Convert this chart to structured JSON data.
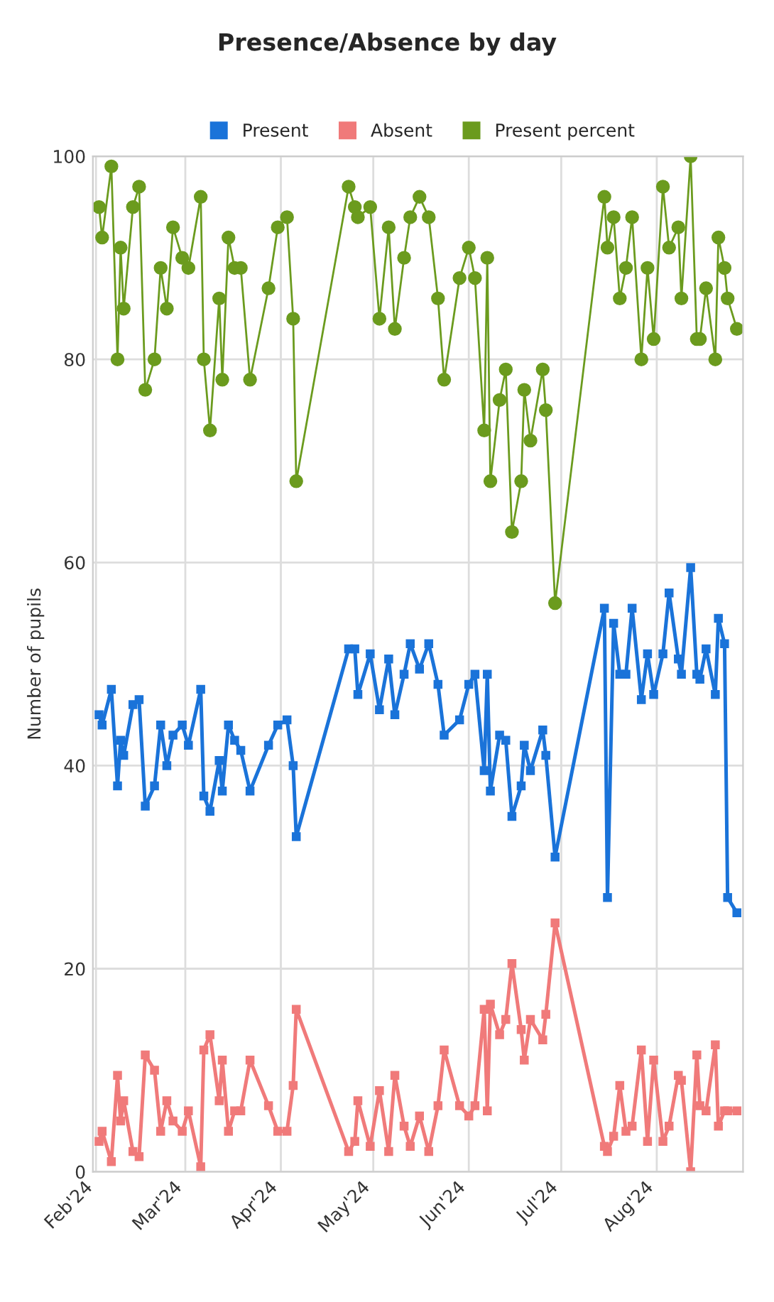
{
  "chart_data": {
    "type": "line",
    "title": "Presence/Absence by day",
    "ylabel": "Number of pupils",
    "x": [
      "2024-02-02",
      "2024-02-03",
      "2024-02-06",
      "2024-02-08",
      "2024-02-09",
      "2024-02-10",
      "2024-02-13",
      "2024-02-15",
      "2024-02-17",
      "2024-02-20",
      "2024-02-22",
      "2024-02-24",
      "2024-02-26",
      "2024-02-29",
      "2024-03-02",
      "2024-03-06",
      "2024-03-07",
      "2024-03-09",
      "2024-03-12",
      "2024-03-13",
      "2024-03-15",
      "2024-03-17",
      "2024-03-19",
      "2024-03-22",
      "2024-03-28",
      "2024-03-31",
      "2024-04-03",
      "2024-04-05",
      "2024-04-06",
      "2024-04-23",
      "2024-04-25",
      "2024-04-26",
      "2024-04-30",
      "2024-05-03",
      "2024-05-06",
      "2024-05-08",
      "2024-05-11",
      "2024-05-13",
      "2024-05-16",
      "2024-05-19",
      "2024-05-22",
      "2024-05-24",
      "2024-05-29",
      "2024-06-01",
      "2024-06-03",
      "2024-06-06",
      "2024-06-07",
      "2024-06-08",
      "2024-06-11",
      "2024-06-13",
      "2024-06-15",
      "2024-06-18",
      "2024-06-19",
      "2024-06-21",
      "2024-06-25",
      "2024-06-26",
      "2024-06-29",
      "2024-07-15",
      "2024-07-16",
      "2024-07-18",
      "2024-07-20",
      "2024-07-22",
      "2024-07-24",
      "2024-07-27",
      "2024-07-29",
      "2024-07-31",
      "2024-08-03",
      "2024-08-05",
      "2024-08-08",
      "2024-08-09",
      "2024-08-12",
      "2024-08-14",
      "2024-08-15",
      "2024-08-17",
      "2024-08-20",
      "2024-08-21",
      "2024-08-23",
      "2024-08-24",
      "2024-08-27"
    ],
    "series": [
      {
        "name": "Present",
        "color": "#1a73d9",
        "marker": "square",
        "values": [
          45,
          44,
          47.5,
          38,
          42.5,
          41,
          46,
          46.5,
          36,
          38,
          44,
          40,
          43,
          44,
          42,
          47.5,
          37,
          35.5,
          40.5,
          37.5,
          44,
          42.5,
          41.5,
          37.5,
          42,
          44,
          44.5,
          40,
          33,
          51.5,
          51.5,
          47,
          51,
          45.5,
          50.5,
          45,
          49,
          52,
          49.5,
          52,
          48,
          43,
          44.5,
          48,
          49,
          39.5,
          49,
          37.5,
          43,
          42.5,
          35,
          38,
          42,
          39.5,
          43.5,
          41,
          31,
          55.5,
          27,
          54,
          49,
          49,
          55.5,
          46.5,
          51,
          47,
          51,
          57,
          50.5,
          49,
          59.5,
          49,
          48.5,
          51.5,
          47,
          54.5,
          52,
          27,
          25.5
        ]
      },
      {
        "name": "Absent",
        "color": "#f07a7a",
        "marker": "square",
        "values": [
          3,
          4,
          1,
          9.5,
          5,
          7,
          2,
          1.5,
          11.5,
          10,
          4,
          7,
          5,
          4,
          6,
          0.5,
          12,
          13.5,
          7,
          11,
          4,
          6,
          6,
          11,
          6.5,
          4,
          4,
          8.5,
          16,
          2,
          3,
          7,
          2.5,
          8,
          2,
          9.5,
          4.5,
          2.5,
          5.5,
          2,
          6.5,
          12,
          6.5,
          5.5,
          6.5,
          16,
          6,
          16.5,
          13.5,
          15,
          20.5,
          14,
          11,
          15,
          13,
          15.5,
          24.5,
          2.5,
          2,
          3.5,
          8.5,
          4,
          4.5,
          12,
          3,
          11,
          3,
          4.5,
          9.5,
          9,
          0,
          11.5,
          6.5,
          6,
          12.5,
          4.5,
          6,
          6,
          6
        ]
      },
      {
        "name": "Present percent",
        "color": "#6b9b1e",
        "marker": "circle",
        "values": [
          95,
          92,
          99,
          80,
          91,
          85,
          95,
          97,
          77,
          80,
          89,
          85,
          93,
          90,
          89,
          96,
          80,
          73,
          86,
          78,
          92,
          89,
          89,
          78,
          87,
          93,
          94,
          84,
          68,
          97,
          95,
          94,
          95,
          84,
          93,
          83,
          90,
          94,
          96,
          94,
          86,
          78,
          88,
          91,
          88,
          73,
          90,
          68,
          76,
          79,
          63,
          68,
          77,
          72,
          79,
          75,
          56,
          96,
          91,
          94,
          86,
          89,
          94,
          80,
          89,
          82,
          97,
          91,
          93,
          86,
          100,
          82,
          82,
          87,
          80,
          92,
          89,
          86,
          83
        ]
      }
    ],
    "xlim": [
      "2024-01-31",
      "2024-08-29"
    ],
    "xticks": [
      {
        "value": "2024-02-01",
        "label": "Feb'24"
      },
      {
        "value": "2024-03-01",
        "label": "Mar'24"
      },
      {
        "value": "2024-04-01",
        "label": "Apr'24"
      },
      {
        "value": "2024-05-01",
        "label": "May'24"
      },
      {
        "value": "2024-06-01",
        "label": "Jun'24"
      },
      {
        "value": "2024-07-01",
        "label": "Jul'24"
      },
      {
        "value": "2024-08-01",
        "label": "Aug'24"
      }
    ],
    "ylim": [
      0,
      100
    ],
    "yticks": [
      0,
      20,
      40,
      60,
      80,
      100
    ],
    "grid": true,
    "legend": "top"
  }
}
